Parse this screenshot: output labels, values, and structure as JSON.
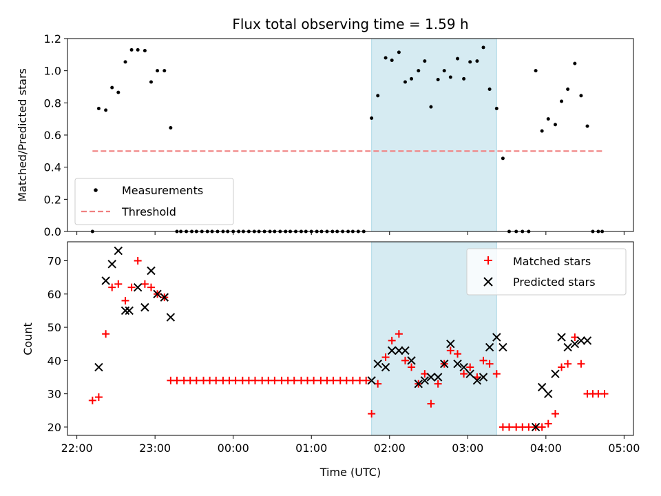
{
  "chart_data": [
    {
      "type": "scatter",
      "title": "Flux total observing time = 1.59 h",
      "xlabel": "",
      "ylabel": "Matched/Predicted stars",
      "ylim": [
        0,
        1.2
      ],
      "yticks": [
        "0.0",
        "0.2",
        "0.4",
        "0.6",
        "0.8",
        "1.0",
        "1.2"
      ],
      "xticks": [
        22,
        23,
        24,
        25,
        26,
        27,
        28,
        29
      ],
      "xlim": [
        21.88,
        29.12
      ],
      "legend_placement": "lower-left",
      "threshold_color": "#f08080",
      "highlight_color": "#add8e6",
      "highlight_range": [
        25.77,
        27.37
      ],
      "legend": {
        "measurements": "Measurements",
        "threshold": "Threshold"
      },
      "threshold": {
        "name": "Threshold",
        "x_range": [
          22.2,
          28.72
        ],
        "value": 0.5
      },
      "series": [
        {
          "name": "Measurements",
          "marker": "dot",
          "color": "#000000",
          "x": [
            22.2,
            22.28,
            22.37,
            22.45,
            22.53,
            22.62,
            22.7,
            22.78,
            22.87,
            22.95,
            23.03,
            23.12,
            23.2,
            23.28,
            23.33,
            23.4,
            23.47,
            23.53,
            23.6,
            23.67,
            23.73,
            23.8,
            23.87,
            23.93,
            24.0,
            24.07,
            24.13,
            24.2,
            24.27,
            24.33,
            24.4,
            24.47,
            24.53,
            24.6,
            24.67,
            24.73,
            24.8,
            24.87,
            24.93,
            25.0,
            25.07,
            25.13,
            25.2,
            25.27,
            25.33,
            25.4,
            25.47,
            25.53,
            25.6,
            25.67,
            25.77,
            25.85,
            25.95,
            26.03,
            26.12,
            26.2,
            26.28,
            26.37,
            26.45,
            26.53,
            26.62,
            26.7,
            26.78,
            26.87,
            26.95,
            27.03,
            27.12,
            27.2,
            27.28,
            27.37,
            27.45,
            27.53,
            27.62,
            27.7,
            27.78,
            27.87,
            27.95,
            28.03,
            28.12,
            28.2,
            28.28,
            28.37,
            28.45,
            28.53,
            28.6,
            28.67,
            28.72
          ],
          "y": [
            0.0,
            0.765,
            0.755,
            0.895,
            0.865,
            1.055,
            1.13,
            1.13,
            1.125,
            0.93,
            1.0,
            1.0,
            0.645,
            0.0,
            0,
            0,
            0,
            0,
            0,
            0,
            0,
            0,
            0,
            0,
            0,
            0,
            0,
            0,
            0,
            0,
            0,
            0,
            0,
            0,
            0,
            0,
            0,
            0,
            0,
            0,
            0,
            0,
            0,
            0,
            0,
            0,
            0,
            0,
            0,
            0,
            0.705,
            0.845,
            1.08,
            1.065,
            1.115,
            0.93,
            0.95,
            1.0,
            1.06,
            0.775,
            0.945,
            1.0,
            0.96,
            1.075,
            0.95,
            1.055,
            1.06,
            1.145,
            0.885,
            0.765,
            0.455,
            0,
            0,
            0,
            0,
            1.0,
            0.625,
            0.7,
            0.665,
            0.81,
            0.885,
            1.045,
            0.845,
            0.655,
            0,
            0,
            0
          ]
        }
      ]
    },
    {
      "type": "scatter",
      "title": "",
      "xlabel": "Time (UTC)",
      "ylabel": "Count",
      "ylim": [
        17.5,
        75.7
      ],
      "yticks": [
        20,
        30,
        40,
        50,
        60,
        70
      ],
      "xticks": [
        22,
        23,
        24,
        25,
        26,
        27,
        28,
        29
      ],
      "xtick_labels": [
        "22:00",
        "23:00",
        "00:00",
        "01:00",
        "02:00",
        "03:00",
        "04:00",
        "05:00"
      ],
      "xlim": [
        21.88,
        29.12
      ],
      "legend_placement": "upper-right",
      "highlight_range": [
        25.77,
        27.37
      ],
      "legend": {
        "matched": "Matched stars",
        "predicted": "Predicted stars"
      },
      "series": [
        {
          "name": "Matched stars",
          "marker": "plus",
          "color": "#ff0000",
          "x": [
            22.2,
            22.28,
            22.37,
            22.45,
            22.53,
            22.62,
            22.7,
            22.78,
            22.87,
            22.95,
            23.03,
            23.12,
            23.2,
            23.28,
            23.37,
            23.45,
            23.53,
            23.62,
            23.7,
            23.78,
            23.87,
            23.95,
            24.03,
            24.12,
            24.2,
            24.28,
            24.37,
            24.45,
            24.53,
            24.62,
            24.7,
            24.78,
            24.87,
            24.95,
            25.03,
            25.12,
            25.2,
            25.28,
            25.37,
            25.45,
            25.53,
            25.62,
            25.7,
            25.77,
            25.85,
            25.95,
            26.03,
            26.12,
            26.2,
            26.28,
            26.37,
            26.45,
            26.53,
            26.62,
            26.7,
            26.78,
            26.87,
            26.95,
            27.03,
            27.12,
            27.2,
            27.28,
            27.37,
            27.45,
            27.53,
            27.62,
            27.7,
            27.78,
            27.87,
            27.95,
            28.03,
            28.12,
            28.2,
            28.28,
            28.37,
            28.45,
            28.53,
            28.6,
            28.67,
            28.75
          ],
          "y": [
            28,
            29,
            48,
            62,
            63,
            58,
            62,
            70,
            63,
            62,
            60,
            59,
            34,
            34,
            34,
            34,
            34,
            34,
            34,
            34,
            34,
            34,
            34,
            34,
            34,
            34,
            34,
            34,
            34,
            34,
            34,
            34,
            34,
            34,
            34,
            34,
            34,
            34,
            34,
            34,
            34,
            34,
            34,
            24,
            33,
            41,
            46,
            48,
            40,
            38,
            33,
            36,
            27,
            33,
            39,
            43,
            42,
            36,
            38,
            35,
            40,
            39,
            36,
            20,
            20,
            20,
            20,
            20,
            20,
            20,
            21,
            24,
            38,
            39,
            47,
            39,
            30,
            30,
            30,
            30
          ]
        },
        {
          "name": "Predicted stars",
          "marker": "x",
          "color": "#000000",
          "x": [
            22.28,
            22.37,
            22.45,
            22.53,
            22.62,
            22.67,
            22.78,
            22.87,
            22.95,
            23.03,
            23.12,
            23.2,
            25.77,
            25.85,
            25.95,
            26.03,
            26.12,
            26.2,
            26.28,
            26.37,
            26.45,
            26.53,
            26.62,
            26.7,
            26.78,
            26.87,
            26.95,
            27.03,
            27.12,
            27.2,
            27.28,
            27.37,
            27.45,
            27.87,
            27.95,
            28.03,
            28.12,
            28.2,
            28.28,
            28.37,
            28.45,
            28.53
          ],
          "y": [
            38,
            64,
            69,
            73,
            55,
            55,
            62,
            56,
            67,
            60,
            59,
            53,
            34,
            39,
            38,
            43,
            43,
            43,
            40,
            33,
            34,
            35,
            35,
            39,
            45,
            39,
            38,
            36,
            34,
            35,
            44,
            47,
            44,
            20,
            32,
            30,
            36,
            47,
            44,
            45,
            46,
            46
          ]
        }
      ]
    }
  ]
}
